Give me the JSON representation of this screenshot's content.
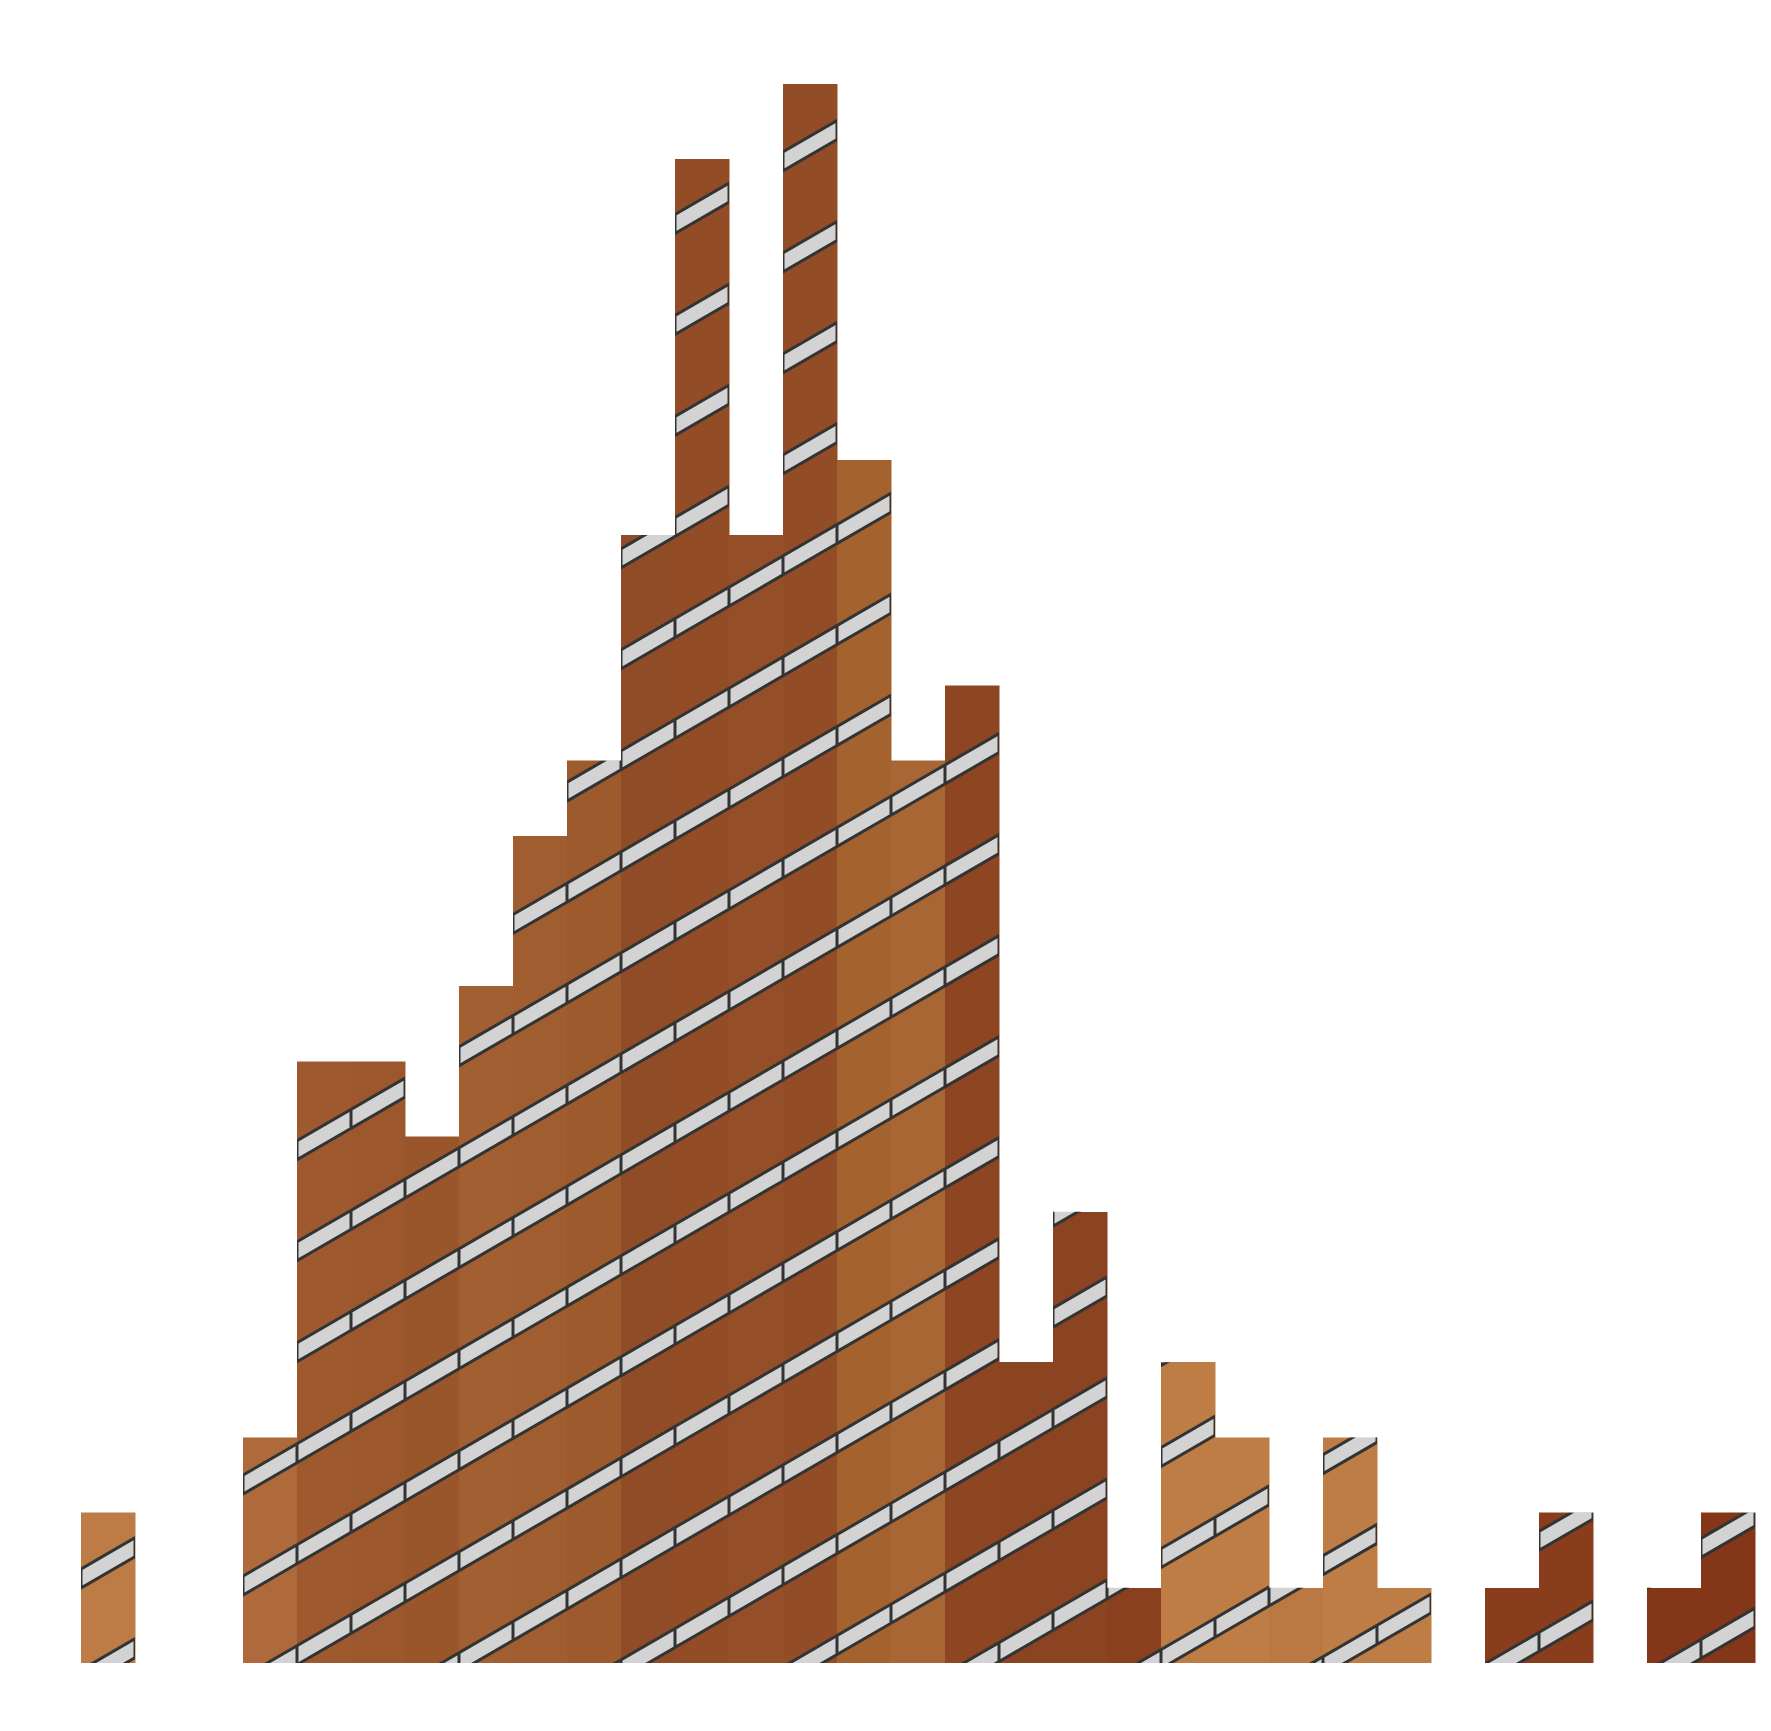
{
  "chart_data": {
    "type": "bar",
    "title": "",
    "xlabel": "",
    "ylabel": "",
    "axes_visible": false,
    "grid": false,
    "legend": "none",
    "bar_pattern": "diagonal-light-gray-stripes",
    "bins": [
      0,
      1,
      2,
      3,
      4,
      5,
      6,
      7,
      8,
      9,
      10,
      11,
      12,
      13,
      14,
      15,
      16,
      17,
      18,
      19,
      20,
      21,
      22,
      23,
      24,
      25,
      26,
      27,
      28,
      29,
      30
    ],
    "values": [
      2,
      0,
      0,
      3,
      8,
      8,
      7,
      9,
      11,
      12,
      15,
      20,
      15,
      21,
      16,
      12,
      13,
      4,
      6,
      1,
      4,
      3,
      1,
      3,
      1,
      0,
      1,
      2,
      0,
      1,
      2
    ],
    "colors": [
      "#bd7b45",
      "#bd7b45",
      "#b57040",
      "#ae6a3a",
      "#9e5a2e",
      "#9c582c",
      "#9a562b",
      "#a25f31",
      "#a05d30",
      "#9d5a2d",
      "#8f4c26",
      "#924d27",
      "#944f28",
      "#924d27",
      "#a4622f",
      "#a86634",
      "#8e4522",
      "#8b4421",
      "#8b4421",
      "#88401f",
      "#bf7d46",
      "#bf7d46",
      "#ba7843",
      "#bf7d46",
      "#bf7d46",
      "#8a3d1d",
      "#8a3d1d",
      "#8a3d1d",
      "#843619",
      "#843619",
      "#843619"
    ],
    "ylim": [
      0,
      21.5
    ]
  }
}
